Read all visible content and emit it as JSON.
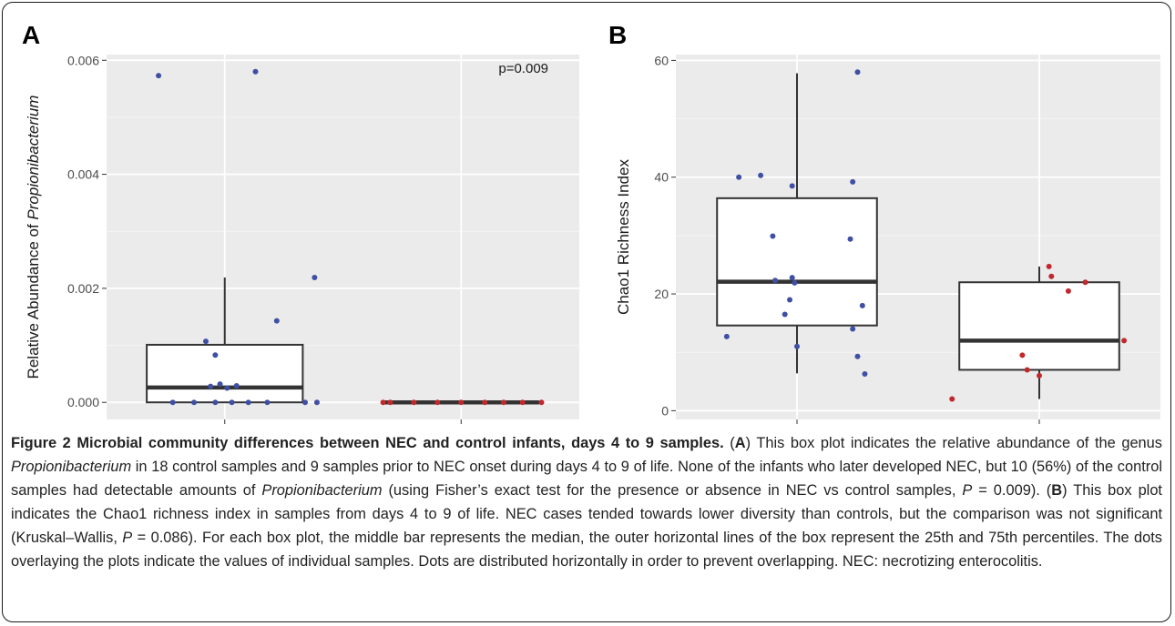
{
  "chart_data": [
    {
      "type": "box",
      "panel": "A",
      "ylabel_prefix": "Relative Abundance of ",
      "ylabel_italic": "Propionibacterium",
      "categories": [
        "Controls",
        "NEC"
      ],
      "ylim": [
        -0.0003,
        0.0061
      ],
      "yticks": [
        0.0,
        0.002,
        0.004,
        0.006
      ],
      "ytick_labels": [
        "0.000",
        "0.002",
        "0.004",
        "0.006"
      ],
      "annotation": "p=0.009",
      "grid": true,
      "boxes": [
        {
          "name": "Controls",
          "min": 0.0,
          "q1": 0.0,
          "median": 0.00026,
          "q3": 0.00101,
          "whisker_high": 0.00219
        },
        {
          "name": "NEC",
          "min": 0.0,
          "q1": 0.0,
          "median": 0.0,
          "q3": 0.0,
          "whisker_high": 0.0
        }
      ],
      "points": [
        {
          "group": "Controls",
          "color": "#3f4fa3",
          "values": [
            0.00573,
            0.0058,
            0.00219,
            0.00143,
            0.00107,
            0.00083,
            0.00032,
            0.00029,
            0.00028,
            0.00025,
            0.0,
            0.0,
            0.0,
            0.0,
            0.0,
            0.0,
            0.0,
            0.0
          ],
          "jitter": [
            -0.28,
            0.13,
            0.38,
            0.22,
            -0.08,
            -0.04,
            -0.02,
            0.05,
            -0.06,
            0.01,
            -0.22,
            -0.13,
            -0.04,
            0.03,
            0.1,
            0.18,
            0.34,
            0.39
          ]
        },
        {
          "group": "NEC",
          "color": "#c0282c",
          "values": [
            0.0,
            0.0,
            0.0,
            0.0,
            0.0,
            0.0,
            0.0,
            0.0,
            0.0
          ],
          "jitter": [
            -0.33,
            -0.3,
            -0.2,
            -0.1,
            0.0,
            0.1,
            0.18,
            0.26,
            0.34
          ]
        }
      ]
    },
    {
      "type": "box",
      "panel": "B",
      "ylabel": "Chao1 Richness Index",
      "categories": [
        "Controls",
        "NEC"
      ],
      "ylim": [
        -1.5,
        61
      ],
      "yticks": [
        0,
        20,
        40,
        60
      ],
      "ytick_labels": [
        "0",
        "20",
        "40",
        "60"
      ],
      "grid": true,
      "boxes": [
        {
          "name": "Controls",
          "min": 6.4,
          "q1": 14.6,
          "median": 22.1,
          "q3": 36.4,
          "whisker_high": 57.8
        },
        {
          "name": "NEC",
          "min": 2.0,
          "q1": 7.0,
          "median": 12.0,
          "q3": 22.0,
          "whisker_high": 24.7
        }
      ],
      "points": [
        {
          "group": "Controls",
          "color": "#3f4fa3",
          "values": [
            58.0,
            40.3,
            40.0,
            39.2,
            38.5,
            29.9,
            29.4,
            22.8,
            22.3,
            21.9,
            19.0,
            18.0,
            16.5,
            14.0,
            12.7,
            11.0,
            9.3,
            6.3
          ],
          "jitter": [
            0.25,
            -0.15,
            -0.24,
            0.23,
            -0.02,
            -0.1,
            0.22,
            -0.02,
            -0.09,
            -0.01,
            -0.03,
            0.27,
            -0.05,
            0.23,
            -0.29,
            0.0,
            0.25,
            0.28
          ]
        },
        {
          "group": "NEC",
          "color": "#c0282c",
          "values": [
            24.7,
            23.0,
            22.0,
            20.5,
            12.0,
            9.5,
            7.0,
            6.0,
            2.0
          ],
          "jitter": [
            0.04,
            0.05,
            0.19,
            0.12,
            0.35,
            -0.07,
            -0.05,
            0.0,
            -0.36
          ]
        }
      ]
    }
  ],
  "caption": {
    "bold_lead": "Figure 2 Microbial community differences between NEC and control infants, days 4 to 9 samples.",
    "p1": "(",
    "a_label": "A",
    "p2": ") This box plot indicates the relative abundance of the genus ",
    "genus1": "Propionibacterium",
    "p3": " in 18 control samples and 9 samples prior to NEC onset during days 4 to 9 of life. None of the infants who later developed NEC, but 10 (56%) of the control samples had detectable amounts of ",
    "genus2": "Propionibacterium",
    "p4": " (using Fisher’s exact test for the presence or absence in NEC vs control samples, ",
    "p_sym1": "P",
    "p5": " = 0.009). (",
    "b_label": "B",
    "p6": ") This box plot indicates the Chao1 richness index in samples from days 4 to 9 of life. NEC cases tended towards lower diversity than controls, but the comparison was not significant (Kruskal–Wallis, ",
    "p_sym2": "P",
    "p7": " = 0.086). For each box plot, the middle bar represents the median, the outer horizontal lines of the box represent the 25th and 75th percentiles. The dots overlaying the plots indicate the values of individual samples. Dots are distributed horizontally in order to prevent overlapping. NEC: necrotizing enterocolitis."
  }
}
